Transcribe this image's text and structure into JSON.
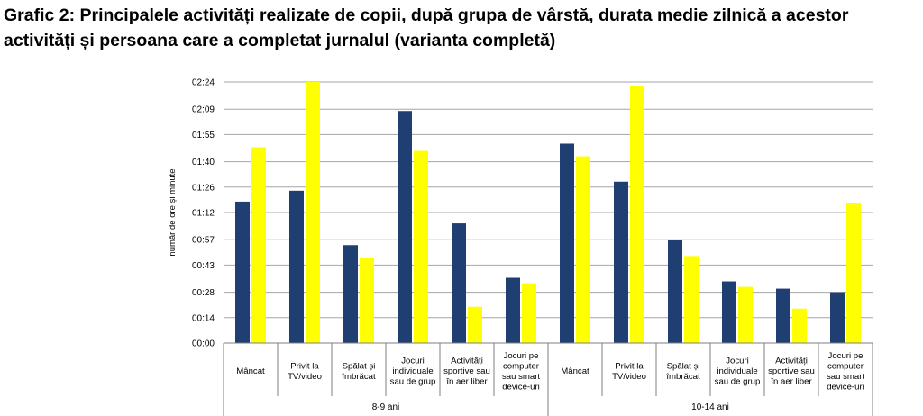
{
  "page": {
    "title_line1": "Grafic 2: Principalele activități realizate de copii, după grupa de vârstă, durata medie zilnică a acestor",
    "title_line2": "activități și persoana care a completat jurnalul (varianta completă)"
  },
  "chart_data": {
    "type": "bar",
    "title": "Grafic 2: Principalele activități realizate de copii, după grupa de vârstă, durata medie zilnică a acestor activități și persoana care a completat jurnalul (varianta completă)",
    "ylabel": "număr de ore și minute",
    "y_unit": "minutes",
    "ylim": [
      0,
      144
    ],
    "y_ticks": [
      0,
      14,
      28,
      43,
      57,
      72,
      86,
      100,
      115,
      129,
      144
    ],
    "y_tick_labels": [
      "00:00",
      "00:14",
      "00:28",
      "00:43",
      "00:57",
      "01:12",
      "01:26",
      "01:40",
      "01:55",
      "02:09",
      "02:24"
    ],
    "grid": true,
    "legend": "none",
    "colors": [
      "#1f3f73",
      "#ffff00"
    ],
    "groups": [
      {
        "label": "8-9 ani",
        "categories": [
          [
            "Mâncat"
          ],
          [
            "Privit la",
            "TV/video"
          ],
          [
            "Spălat și",
            "îmbrăcat"
          ],
          [
            "Jocuri",
            "individuale",
            "sau de grup"
          ],
          [
            "Activități",
            "sportive sau",
            "în aer liber"
          ],
          [
            "Jocuri pe",
            "computer",
            "sau smart",
            "device-uri"
          ]
        ]
      },
      {
        "label": "10-14 ani",
        "categories": [
          [
            "Mâncat"
          ],
          [
            "Privit la",
            "TV/video"
          ],
          [
            "Spălat și",
            "îmbrăcat"
          ],
          [
            "Jocuri",
            "individuale",
            "sau de grup"
          ],
          [
            "Activități",
            "sportive sau",
            "în aer liber"
          ],
          [
            "Jocuri pe",
            "computer",
            "sau smart",
            "device-uri"
          ]
        ]
      }
    ],
    "series": [
      {
        "values": [
          78,
          84,
          54,
          128,
          66,
          36,
          110,
          89,
          57,
          34,
          30,
          28
        ]
      },
      {
        "values": [
          108,
          144,
          47,
          106,
          20,
          33,
          103,
          142,
          48,
          31,
          19,
          77
        ]
      }
    ]
  }
}
